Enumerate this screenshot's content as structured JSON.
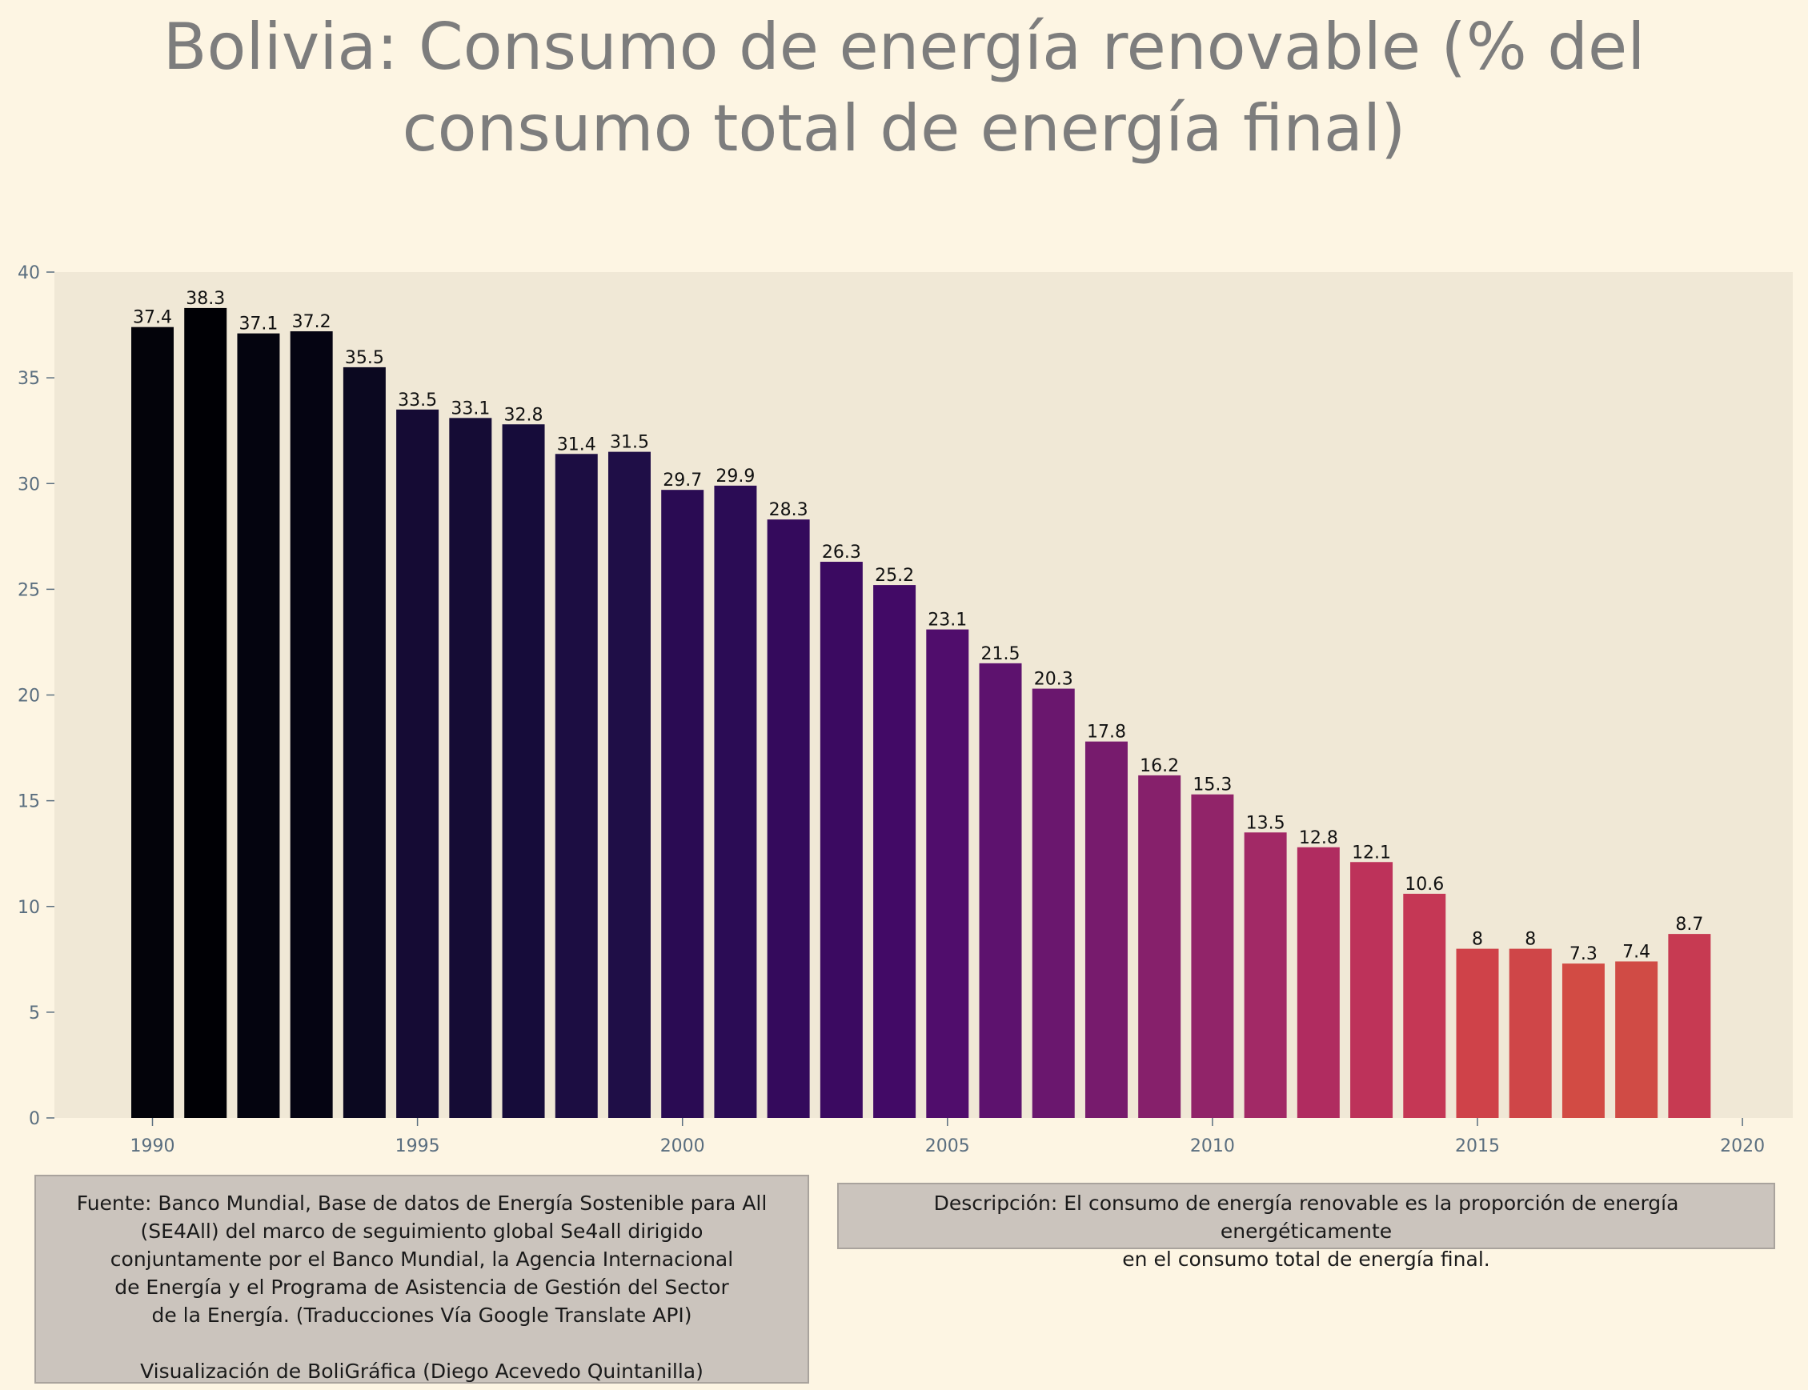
{
  "title": "Bolivia:  Consumo de energía renovable (% del consumo total de energía final)",
  "title_lines": [
    "Bolivia:  Consumo de energía renovable (% del",
    "consumo total de energía final)"
  ],
  "source_text": "Fuente: Banco Mundial, Base de datos de Energía Sostenible para All\n(SE4All) del marco de seguimiento global Se4all dirigido\nconjuntamente por el Banco Mundial, la Agencia Internacional\nde Energía y el Programa de Asistencia de Gestión del Sector\nde la Energía. (Traducciones Vía Google Translate API)\n\nVisualización de BoliGráfica (Diego Acevedo Quintanilla)",
  "description_text": "Descripción: El consumo de energía renovable es la proporción de energía energéticamente\nen el consumo total de energía final.",
  "colors": {
    "background": "#fdf5e3",
    "plot_background": "#f0e8d6",
    "title": "#7d7d7d",
    "tick_label": "#5a6e7f",
    "box_fill": "#cbc4bd",
    "palette": [
      "#03030a",
      "#000005",
      "#04040f",
      "#050412",
      "#0b0820",
      "#150b34",
      "#150c35",
      "#160c3a",
      "#1c0d42",
      "#1f0e47",
      "#2a0b53",
      "#2b0c55",
      "#340a5c",
      "#3b0a61",
      "#420a66",
      "#500d6c",
      "#5d126e",
      "#6a176e",
      "#771b6d",
      "#86206b",
      "#912469",
      "#a22966",
      "#b02c60",
      "#bd325a",
      "#c53755",
      "#cf4249",
      "#cf4648",
      "#d24b44",
      "#d04b45",
      "#c73a52"
    ]
  },
  "chart_data": {
    "type": "bar",
    "title": "Bolivia:  Consumo de energía renovable (% del consumo total de energía final)",
    "xlabel": "",
    "ylabel": "",
    "x": [
      1990,
      1991,
      1992,
      1993,
      1994,
      1995,
      1996,
      1997,
      1998,
      1999,
      2000,
      2001,
      2002,
      2003,
      2004,
      2005,
      2006,
      2007,
      2008,
      2009,
      2010,
      2011,
      2012,
      2013,
      2014,
      2015,
      2016,
      2017,
      2018,
      2019
    ],
    "values": [
      37.4,
      38.3,
      37.1,
      37.2,
      35.5,
      33.5,
      33.1,
      32.8,
      31.4,
      31.5,
      29.7,
      29.9,
      28.3,
      26.3,
      25.2,
      23.1,
      21.5,
      20.3,
      17.8,
      16.2,
      15.3,
      13.5,
      12.8,
      12.1,
      10.6,
      8,
      8,
      7.3,
      7.4,
      8.7
    ],
    "data_labels": [
      "37.4",
      "38.3",
      "37.1",
      "37.2",
      "35.5",
      "33.5",
      "33.1",
      "32.8",
      "31.4",
      "31.5",
      "29.7",
      "29.9",
      "28.3",
      "26.3",
      "25.2",
      "23.1",
      "21.5",
      "20.3",
      "17.8",
      "16.2",
      "15.3",
      "13.5",
      "12.8",
      "12.1",
      "10.6",
      "8",
      "8",
      "7.3",
      "7.4",
      "8.7"
    ],
    "xlim": [
      1988.15,
      2020.95
    ],
    "ylim": [
      0,
      40
    ],
    "x_ticks": [
      1990,
      1995,
      2000,
      2005,
      2010,
      2015,
      2020
    ],
    "x_tick_labels": [
      "1990",
      "1995",
      "2000",
      "2005",
      "2010",
      "2015",
      "2020"
    ],
    "y_ticks": [
      0,
      5,
      10,
      15,
      20,
      25,
      30,
      35,
      40
    ],
    "y_tick_labels": [
      "0",
      "5",
      "10",
      "15",
      "20",
      "25",
      "30",
      "35",
      "40"
    ],
    "grid": false,
    "legend": "none"
  }
}
